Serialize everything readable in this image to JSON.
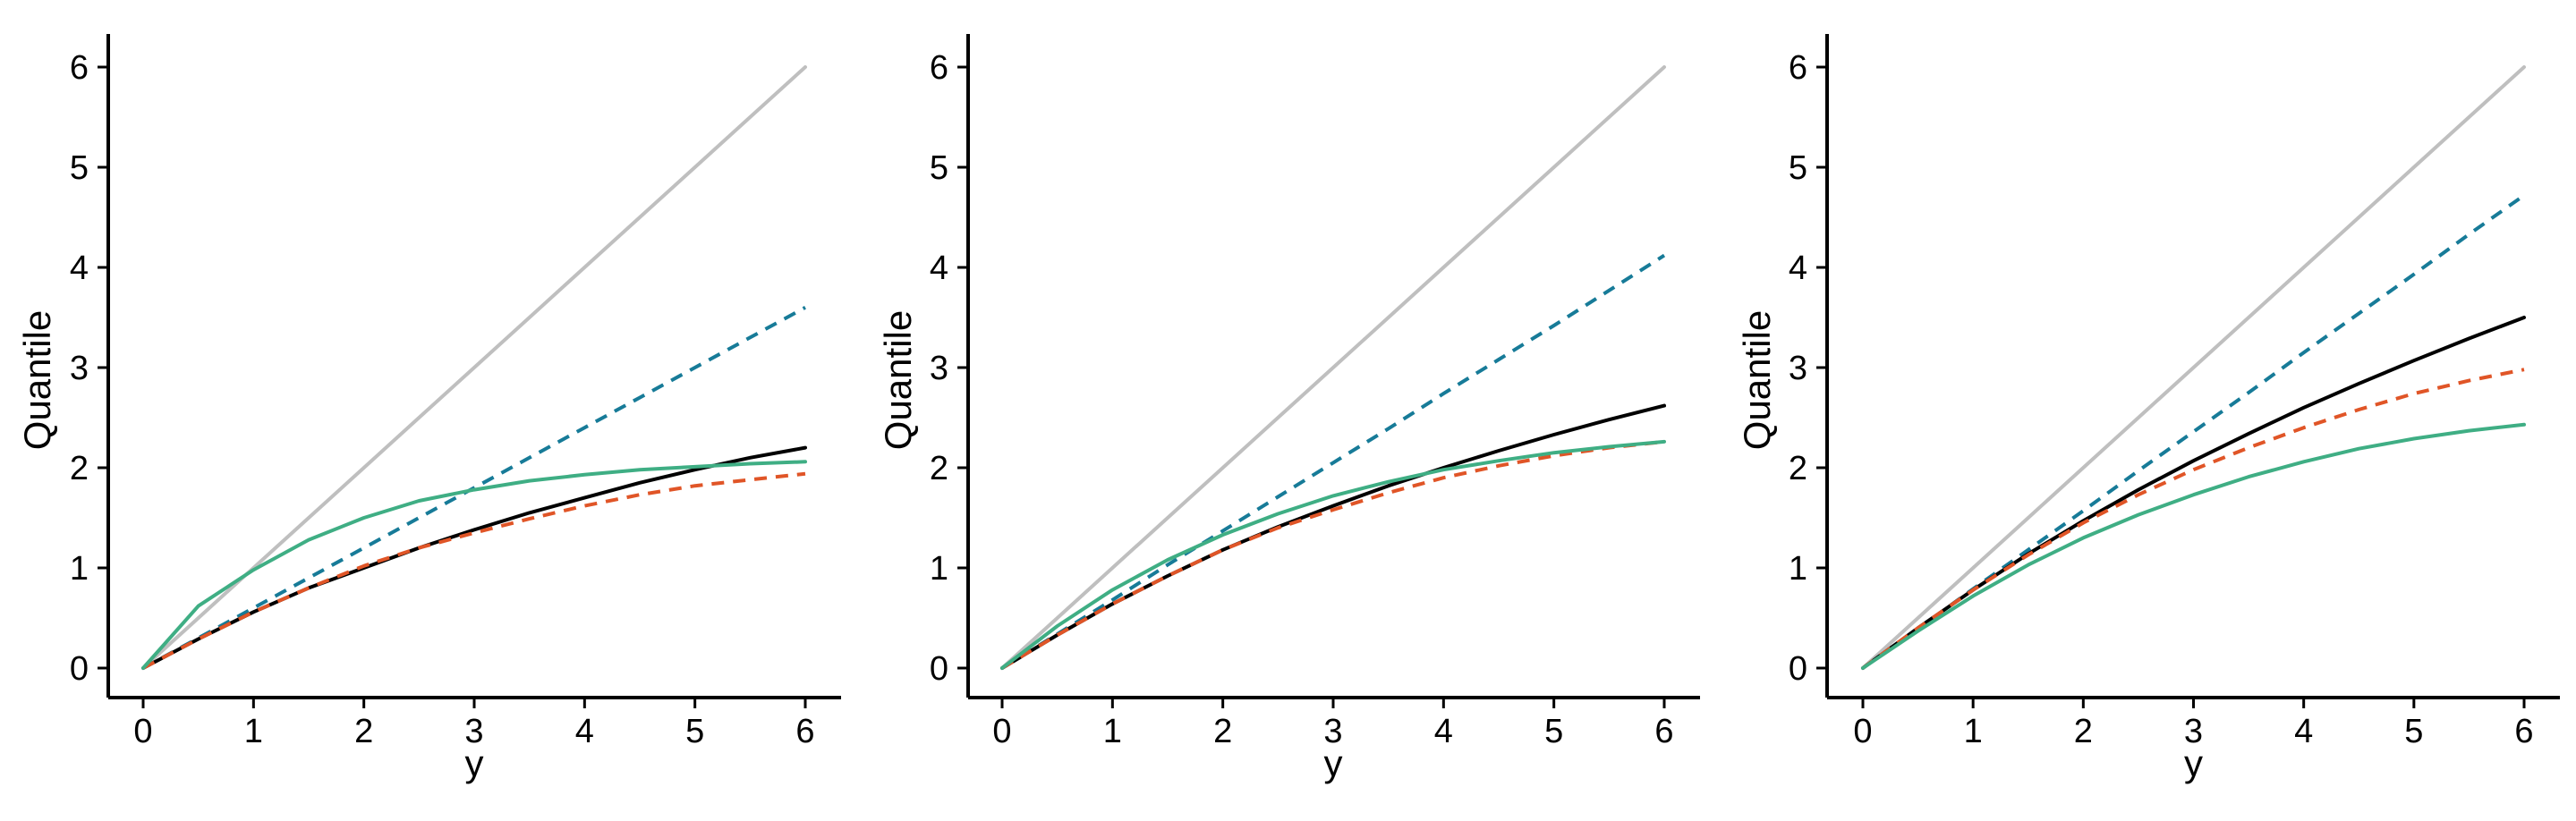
{
  "chart_data": [
    {
      "type": "line",
      "title": "",
      "xlabel": "y",
      "ylabel": "Quantile",
      "xlim": [
        0,
        6
      ],
      "ylim": [
        0,
        6
      ],
      "xticks": [
        "0",
        "1",
        "2",
        "3",
        "4",
        "5",
        "6"
      ],
      "yticks": [
        "0",
        "1",
        "2",
        "3",
        "4",
        "5",
        "6"
      ],
      "grid": false,
      "legend": "none",
      "x": [
        0,
        0.5,
        1,
        1.5,
        2,
        2.5,
        3,
        3.5,
        4,
        4.5,
        5,
        5.5,
        6
      ],
      "series": [
        {
          "color": "#bfbfbf",
          "dash": "solid",
          "values": [
            0,
            0.5,
            1,
            1.5,
            2,
            2.5,
            3,
            3.5,
            4,
            4.5,
            5,
            5.5,
            6
          ]
        },
        {
          "color": "#177b98",
          "dash": "dashed",
          "values": [
            0,
            0.3,
            0.6,
            0.9,
            1.2,
            1.5,
            1.8,
            2.1,
            2.4,
            2.7,
            3.0,
            3.3,
            3.6
          ]
        },
        {
          "color": "#000000",
          "dash": "solid",
          "values": [
            0,
            0.29,
            0.56,
            0.8,
            1.0,
            1.2,
            1.38,
            1.55,
            1.7,
            1.85,
            1.98,
            2.1,
            2.2
          ]
        },
        {
          "color": "#e05527",
          "dash": "dashed",
          "values": [
            0,
            0.29,
            0.56,
            0.8,
            1.02,
            1.2,
            1.35,
            1.49,
            1.62,
            1.73,
            1.82,
            1.88,
            1.94
          ]
        },
        {
          "color": "#3fae84",
          "dash": "solid",
          "values": [
            0,
            0.62,
            0.98,
            1.28,
            1.5,
            1.67,
            1.78,
            1.87,
            1.93,
            1.98,
            2.01,
            2.04,
            2.06
          ]
        }
      ]
    },
    {
      "type": "line",
      "title": "",
      "xlabel": "y",
      "ylabel": "Quantile",
      "xlim": [
        0,
        6
      ],
      "ylim": [
        0,
        6
      ],
      "xticks": [
        "0",
        "1",
        "2",
        "3",
        "4",
        "5",
        "6"
      ],
      "yticks": [
        "0",
        "1",
        "2",
        "3",
        "4",
        "5",
        "6"
      ],
      "grid": false,
      "legend": "none",
      "x": [
        0,
        0.5,
        1,
        1.5,
        2,
        2.5,
        3,
        3.5,
        4,
        4.5,
        5,
        5.5,
        6
      ],
      "series": [
        {
          "color": "#bfbfbf",
          "dash": "solid",
          "values": [
            0,
            0.5,
            1,
            1.5,
            2,
            2.5,
            3,
            3.5,
            4,
            4.5,
            5,
            5.5,
            6
          ]
        },
        {
          "color": "#177b98",
          "dash": "dashed",
          "values": [
            0,
            0.34,
            0.68,
            1.03,
            1.37,
            1.71,
            2.05,
            2.39,
            2.74,
            3.08,
            3.42,
            3.77,
            4.12
          ]
        },
        {
          "color": "#000000",
          "dash": "solid",
          "values": [
            0,
            0.33,
            0.64,
            0.92,
            1.18,
            1.41,
            1.62,
            1.82,
            2.0,
            2.17,
            2.33,
            2.48,
            2.62
          ]
        },
        {
          "color": "#e05527",
          "dash": "dashed",
          "values": [
            0,
            0.33,
            0.64,
            0.92,
            1.18,
            1.4,
            1.58,
            1.75,
            1.9,
            2.02,
            2.12,
            2.2,
            2.26
          ]
        },
        {
          "color": "#3fae84",
          "dash": "solid",
          "values": [
            0,
            0.42,
            0.78,
            1.08,
            1.33,
            1.54,
            1.72,
            1.86,
            1.98,
            2.07,
            2.15,
            2.21,
            2.26
          ]
        }
      ]
    },
    {
      "type": "line",
      "title": "",
      "xlabel": "y",
      "ylabel": "Quantile",
      "xlim": [
        0,
        6
      ],
      "ylim": [
        0,
        6
      ],
      "xticks": [
        "0",
        "1",
        "2",
        "3",
        "4",
        "5",
        "6"
      ],
      "yticks": [
        "0",
        "1",
        "2",
        "3",
        "4",
        "5",
        "6"
      ],
      "grid": false,
      "legend": "none",
      "x": [
        0,
        0.5,
        1,
        1.5,
        2,
        2.5,
        3,
        3.5,
        4,
        4.5,
        5,
        5.5,
        6
      ],
      "series": [
        {
          "color": "#bfbfbf",
          "dash": "solid",
          "values": [
            0,
            0.5,
            1,
            1.5,
            2,
            2.5,
            3,
            3.5,
            4,
            4.5,
            5,
            5.5,
            6
          ]
        },
        {
          "color": "#177b98",
          "dash": "dashed",
          "values": [
            0,
            0.39,
            0.79,
            1.18,
            1.57,
            1.97,
            2.36,
            2.75,
            3.15,
            3.54,
            3.93,
            4.33,
            4.72
          ]
        },
        {
          "color": "#000000",
          "dash": "solid",
          "values": [
            0,
            0.4,
            0.78,
            1.14,
            1.47,
            1.78,
            2.07,
            2.34,
            2.6,
            2.84,
            3.07,
            3.29,
            3.5
          ]
        },
        {
          "color": "#e05527",
          "dash": "dashed",
          "values": [
            0,
            0.4,
            0.78,
            1.13,
            1.45,
            1.73,
            1.98,
            2.2,
            2.4,
            2.58,
            2.74,
            2.87,
            2.98
          ]
        },
        {
          "color": "#3fae84",
          "dash": "solid",
          "values": [
            0,
            0.37,
            0.72,
            1.03,
            1.3,
            1.53,
            1.73,
            1.91,
            2.06,
            2.19,
            2.29,
            2.37,
            2.43
          ]
        }
      ]
    }
  ]
}
